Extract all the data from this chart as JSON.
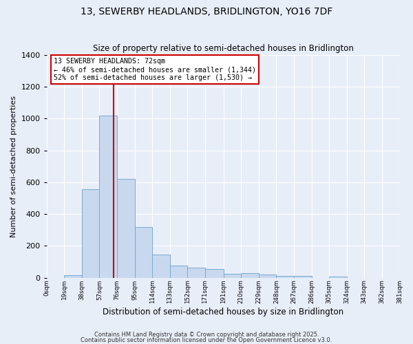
{
  "title1": "13, SEWERBY HEADLANDS, BRIDLINGTON, YO16 7DF",
  "title2": "Size of property relative to semi-detached houses in Bridlington",
  "xlabel": "Distribution of semi-detached houses by size in Bridlington",
  "ylabel": "Number of semi-detached properties",
  "annotation_label": "13 SEWERBY HEADLANDS: 72sqm",
  "annotation_line1": "← 46% of semi-detached houses are smaller (1,344)",
  "annotation_line2": "52% of semi-detached houses are larger (1,530) →",
  "bar_edges": [
    0,
    19,
    38,
    57,
    76,
    95,
    114,
    133,
    152,
    171,
    191,
    210,
    229,
    248,
    267,
    286,
    305,
    324,
    343,
    362,
    381
  ],
  "bar_heights": [
    0,
    18,
    557,
    1020,
    622,
    318,
    148,
    75,
    62,
    55,
    25,
    30,
    22,
    10,
    12,
    0,
    7,
    0,
    0,
    0
  ],
  "bar_color": "#c8d8ee",
  "bar_edge_color": "#7aaad0",
  "vline_x": 72,
  "vline_color": "#cc0000",
  "annotation_box_color": "#cc0000",
  "ylim": [
    0,
    1400
  ],
  "yticks": [
    0,
    200,
    400,
    600,
    800,
    1000,
    1200,
    1400
  ],
  "bg_color": "#e8eef8",
  "grid_color": "#ffffff",
  "footer1": "Contains HM Land Registry data © Crown copyright and database right 2025.",
  "footer2": "Contains public sector information licensed under the Open Government Licence v3.0."
}
